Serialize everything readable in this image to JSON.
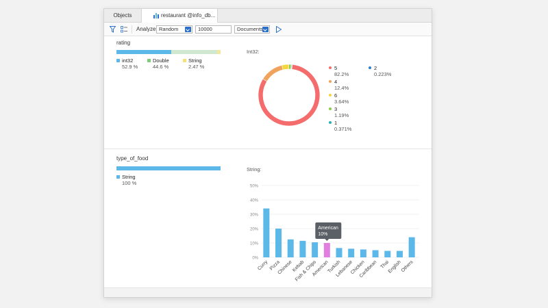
{
  "tabs": [
    {
      "label": "Objects"
    },
    {
      "label": "restaurant @info_db..."
    }
  ],
  "toolbar": {
    "analyze_label": "Analyze:",
    "mode_value": "Random",
    "count_value": "10000",
    "target_value": "Documents"
  },
  "fields": [
    {
      "name": "rating",
      "types": [
        {
          "name": "int32",
          "percent": "52.9 %",
          "fraction": 0.529,
          "color": "#5bb8e8"
        },
        {
          "name": "Double",
          "percent": "44.6 %",
          "fraction": 0.446,
          "color": "#cfe8cf"
        },
        {
          "name": "String",
          "percent": "2.47 %",
          "fraction": 0.0247,
          "color": "#f3e79a"
        }
      ],
      "chart_label": "Int32:"
    },
    {
      "name": "type_of_food",
      "types": [
        {
          "name": "String",
          "percent": "100 %",
          "fraction": 1.0,
          "color": "#5bb8e8"
        }
      ],
      "chart_label": "String:"
    }
  ],
  "colors": {
    "accent": "#2a6fc9",
    "bar": "#5bb8e8",
    "bar_highlight": "#e07fe0",
    "tooltip_bg": "#5b6066"
  },
  "legend_colors": {
    "int32": "#5bb8e8",
    "Double": "#7ecb7e",
    "String": "#f3e27a"
  },
  "chart_data": [
    {
      "type": "pie",
      "title": "Int32:",
      "donut": true,
      "slices": [
        {
          "label": "5",
          "value": 82.2,
          "pct": "82.2%",
          "color": "#f56c6c"
        },
        {
          "label": "4",
          "value": 12.4,
          "pct": "12.4%",
          "color": "#f0a35c"
        },
        {
          "label": "6",
          "value": 3.64,
          "pct": "3.64%",
          "color": "#f5d63d"
        },
        {
          "label": "3",
          "value": 1.19,
          "pct": "1.19%",
          "color": "#8bcc4a"
        },
        {
          "label": "1",
          "value": 0.371,
          "pct": "0.371%",
          "color": "#2bb3b3"
        },
        {
          "label": "2",
          "value": 0.223,
          "pct": "0.223%",
          "color": "#2f7fc9"
        }
      ]
    },
    {
      "type": "bar",
      "title": "String:",
      "categories": [
        "Curry",
        "Pizza",
        "Chinese",
        "Kebab",
        "Fish & Chips",
        "American",
        "Turkish",
        "Lebanese",
        "Chicken",
        "Caribbean",
        "Thai",
        "English",
        "Others"
      ],
      "values": [
        34,
        20,
        12.5,
        11.5,
        10.5,
        10,
        6.5,
        6,
        5.5,
        5,
        4.5,
        4.5,
        14
      ],
      "ylim": [
        0,
        50
      ],
      "yticks": [
        "0%",
        "10%",
        "20%",
        "30%",
        "40%",
        "50%"
      ],
      "highlight_index": 5,
      "tooltip": {
        "title": "American",
        "value": "10%"
      }
    }
  ]
}
